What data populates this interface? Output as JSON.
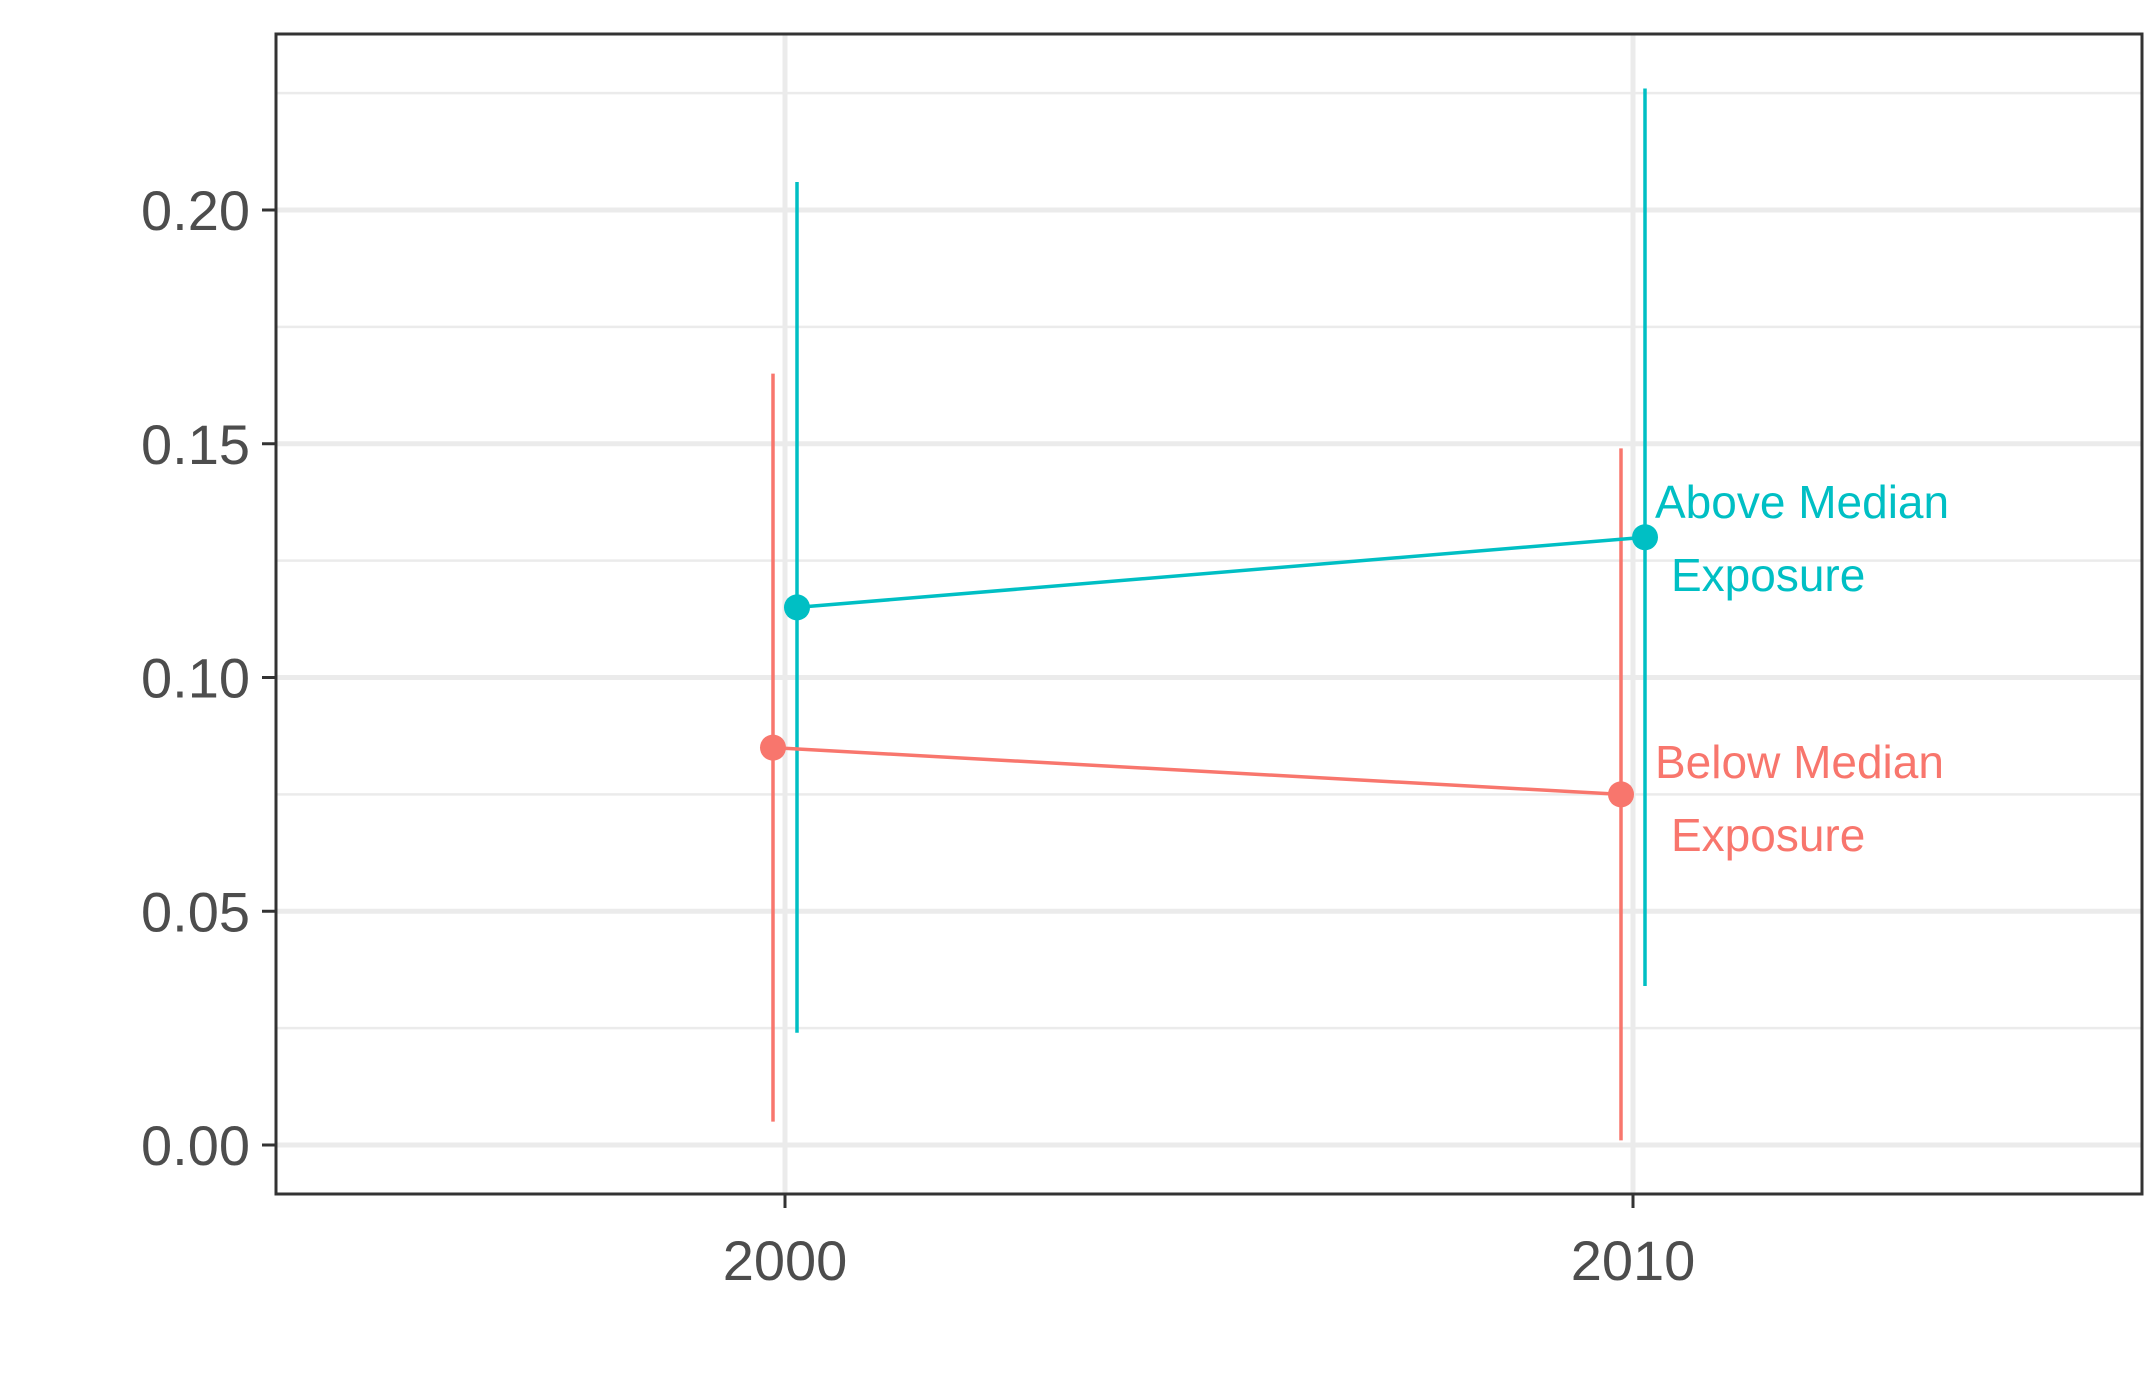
{
  "chart_data": {
    "type": "line",
    "title": "",
    "xlabel": "",
    "ylabel": "",
    "categories": [
      "2000",
      "2010"
    ],
    "x_tick_labels": [
      "2000",
      "2010"
    ],
    "ylim": [
      -0.01,
      0.238
    ],
    "y_ticks": [
      0.0,
      0.05,
      0.1,
      0.15,
      0.2
    ],
    "y_tick_labels": [
      "0.00",
      "0.05",
      "0.10",
      "0.15",
      "0.20"
    ],
    "grid": true,
    "legend": "none",
    "series": [
      {
        "name": "Above Median Exposure",
        "label_lines": [
          "Above Median",
          "Exposure"
        ],
        "color": "#00BFC4",
        "values": [
          0.115,
          0.13
        ],
        "lower": [
          0.024,
          0.034
        ],
        "upper": [
          0.206,
          0.226
        ]
      },
      {
        "name": "Below Median Exposure",
        "label_lines": [
          "Below Median",
          "Exposure"
        ],
        "color": "#F8766D",
        "values": [
          0.085,
          0.075
        ],
        "lower": [
          0.005,
          0.001
        ],
        "upper": [
          0.165,
          0.149
        ]
      }
    ]
  }
}
